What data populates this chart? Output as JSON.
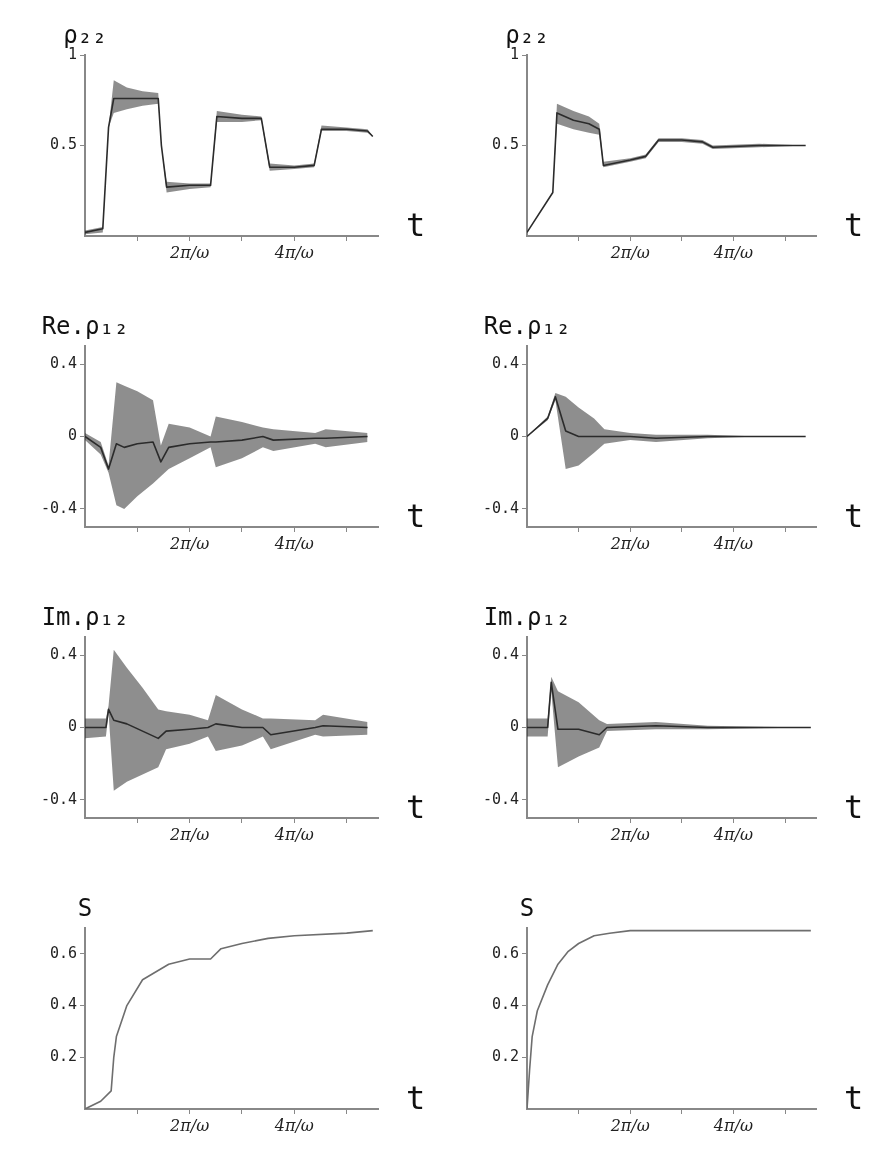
{
  "chart_data": [
    {
      "type": "line",
      "ylabel": "ρ₂₂",
      "xlabel": "t",
      "marker": "none",
      "grid": false,
      "legend": false,
      "x": [
        0,
        0.34,
        0.45,
        0.55,
        0.8,
        1.1,
        1.4,
        1.46,
        1.56,
        2.0,
        2.4,
        2.52,
        3.0,
        3.37,
        3.53,
        4.0,
        4.38,
        4.52,
        5.0,
        5.4,
        5.5
      ],
      "xlim": [
        0,
        5.6
      ],
      "xticks": [
        {
          "value": 1,
          "label": null
        },
        {
          "value": 2,
          "label": "2π/ω"
        },
        {
          "value": 3,
          "label": null
        },
        {
          "value": 4,
          "label": "4π/ω"
        },
        {
          "value": 5,
          "label": null
        }
      ],
      "ylim": [
        0,
        1
      ],
      "yticks": [
        0.5,
        1
      ],
      "series": [
        {
          "color": "#2b2b2b",
          "values": [
            0.02,
            0.04,
            0.6,
            0.76,
            0.76,
            0.76,
            0.76,
            0.5,
            0.27,
            0.28,
            0.28,
            0.66,
            0.65,
            0.65,
            0.38,
            0.38,
            0.39,
            0.59,
            0.59,
            0.58,
            0.55
          ],
          "lower": [
            0.01,
            0.02,
            0.6,
            0.68,
            0.7,
            0.72,
            0.73,
            0.5,
            0.24,
            0.26,
            0.27,
            0.63,
            0.63,
            0.64,
            0.36,
            0.37,
            0.38,
            0.58,
            0.58,
            0.57,
            0.55
          ],
          "upper": [
            0.03,
            0.05,
            0.6,
            0.86,
            0.82,
            0.8,
            0.79,
            0.5,
            0.3,
            0.29,
            0.29,
            0.69,
            0.67,
            0.66,
            0.4,
            0.39,
            0.4,
            0.61,
            0.6,
            0.59,
            0.55
          ]
        }
      ]
    },
    {
      "type": "line",
      "ylabel": "ρ₂₂",
      "xlabel": "t",
      "marker": "none",
      "grid": false,
      "legend": false,
      "x": [
        0,
        0.5,
        0.58,
        0.9,
        1.2,
        1.4,
        1.48,
        2.0,
        2.3,
        2.55,
        3.0,
        3.4,
        3.6,
        4.5,
        5.4
      ],
      "xlim": [
        0,
        5.6
      ],
      "xticks": [
        {
          "value": 1,
          "label": null
        },
        {
          "value": 2,
          "label": "2π/ω"
        },
        {
          "value": 3,
          "label": null
        },
        {
          "value": 4,
          "label": "4π/ω"
        },
        {
          "value": 5,
          "label": null
        }
      ],
      "ylim": [
        0,
        1
      ],
      "yticks": [
        0.5,
        1
      ],
      "series": [
        {
          "color": "#2b2b2b",
          "values": [
            0.02,
            0.24,
            0.68,
            0.64,
            0.62,
            0.59,
            0.39,
            0.42,
            0.44,
            0.53,
            0.53,
            0.52,
            0.49,
            0.5,
            0.5
          ],
          "lower": [
            0.02,
            0.24,
            0.62,
            0.59,
            0.57,
            0.56,
            0.38,
            0.41,
            0.43,
            0.52,
            0.52,
            0.51,
            0.48,
            0.49,
            0.5
          ],
          "upper": [
            0.02,
            0.24,
            0.73,
            0.69,
            0.66,
            0.62,
            0.41,
            0.43,
            0.45,
            0.54,
            0.54,
            0.53,
            0.5,
            0.51,
            0.5
          ]
        }
      ]
    },
    {
      "type": "line",
      "ylabel": "Re.ρ₁₂",
      "xlabel": "t",
      "marker": "none",
      "grid": false,
      "legend": false,
      "x": [
        0,
        0.3,
        0.45,
        0.6,
        0.75,
        1.0,
        1.3,
        1.45,
        1.6,
        2.0,
        2.4,
        2.5,
        3.0,
        3.4,
        3.6,
        4.4,
        4.6,
        5.4
      ],
      "xlim": [
        0,
        5.6
      ],
      "xticks": [
        {
          "value": 1,
          "label": null
        },
        {
          "value": 2,
          "label": "2π/ω"
        },
        {
          "value": 3,
          "label": null
        },
        {
          "value": 4,
          "label": "4π/ω"
        },
        {
          "value": 5,
          "label": null
        }
      ],
      "ylim": [
        -0.5,
        0.5
      ],
      "yticks": [
        -0.4,
        0,
        0.4
      ],
      "series": [
        {
          "color": "#2b2b2b",
          "values": [
            0,
            -0.06,
            -0.18,
            -0.04,
            -0.06,
            -0.04,
            -0.03,
            -0.14,
            -0.06,
            -0.04,
            -0.03,
            -0.03,
            -0.02,
            0,
            -0.02,
            -0.01,
            -0.01,
            0
          ],
          "lower": [
            -0.02,
            -0.1,
            -0.2,
            -0.38,
            -0.4,
            -0.33,
            -0.26,
            -0.22,
            -0.18,
            -0.12,
            -0.06,
            -0.17,
            -0.12,
            -0.06,
            -0.08,
            -0.04,
            -0.06,
            -0.03
          ],
          "upper": [
            0.02,
            -0.03,
            -0.16,
            0.3,
            0.28,
            0.25,
            0.2,
            -0.05,
            0.07,
            0.05,
            0,
            0.11,
            0.08,
            0.05,
            0.04,
            0.02,
            0.04,
            0.02
          ]
        }
      ]
    },
    {
      "type": "line",
      "ylabel": "Re.ρ₁₂",
      "xlabel": "t",
      "marker": "none",
      "grid": false,
      "legend": false,
      "x": [
        0,
        0.4,
        0.55,
        0.75,
        1.0,
        1.3,
        1.5,
        2.0,
        2.5,
        3.5,
        4.5,
        5.4
      ],
      "xlim": [
        0,
        5.6
      ],
      "xticks": [
        {
          "value": 1,
          "label": null
        },
        {
          "value": 2,
          "label": "2π/ω"
        },
        {
          "value": 3,
          "label": null
        },
        {
          "value": 4,
          "label": "4π/ω"
        },
        {
          "value": 5,
          "label": null
        }
      ],
      "ylim": [
        -0.5,
        0.5
      ],
      "yticks": [
        -0.4,
        0,
        0.4
      ],
      "series": [
        {
          "color": "#2b2b2b",
          "values": [
            0,
            0.1,
            0.22,
            0.03,
            0,
            0,
            0,
            0,
            -0.01,
            0,
            0,
            0
          ],
          "lower": [
            0,
            0.09,
            0.2,
            -0.18,
            -0.16,
            -0.09,
            -0.04,
            -0.02,
            -0.03,
            -0.01,
            0,
            0
          ],
          "upper": [
            0,
            0.11,
            0.24,
            0.22,
            0.16,
            0.1,
            0.04,
            0.02,
            0.01,
            0.01,
            0,
            0
          ]
        }
      ]
    },
    {
      "type": "line",
      "ylabel": "Im.ρ₁₂",
      "xlabel": "t",
      "marker": "none",
      "grid": false,
      "legend": false,
      "x": [
        0,
        0.4,
        0.45,
        0.55,
        0.8,
        1.1,
        1.4,
        1.55,
        2.0,
        2.35,
        2.5,
        3.0,
        3.4,
        3.55,
        4.4,
        4.55,
        5.4
      ],
      "xlim": [
        0,
        5.6
      ],
      "xticks": [
        {
          "value": 1,
          "label": null
        },
        {
          "value": 2,
          "label": "2π/ω"
        },
        {
          "value": 3,
          "label": null
        },
        {
          "value": 4,
          "label": "4π/ω"
        },
        {
          "value": 5,
          "label": null
        }
      ],
      "ylim": [
        -0.5,
        0.5
      ],
      "yticks": [
        -0.4,
        0,
        0.4
      ],
      "series": [
        {
          "color": "#2b2b2b",
          "values": [
            0,
            0,
            0.1,
            0.04,
            0.02,
            -0.02,
            -0.06,
            -0.02,
            -0.01,
            0,
            0.02,
            0,
            0,
            -0.04,
            0,
            0.01,
            0
          ],
          "lower": [
            -0.06,
            -0.05,
            0.08,
            -0.35,
            -0.3,
            -0.26,
            -0.22,
            -0.12,
            -0.09,
            -0.05,
            -0.13,
            -0.1,
            -0.05,
            -0.12,
            -0.04,
            -0.05,
            -0.04
          ],
          "upper": [
            0.05,
            0.05,
            0.12,
            0.43,
            0.33,
            0.22,
            0.1,
            0.09,
            0.07,
            0.04,
            0.18,
            0.1,
            0.05,
            0.05,
            0.04,
            0.07,
            0.03
          ]
        }
      ]
    },
    {
      "type": "line",
      "ylabel": "Im.ρ₁₂",
      "xlabel": "t",
      "marker": "none",
      "grid": false,
      "legend": false,
      "x": [
        0,
        0.4,
        0.47,
        0.6,
        1.0,
        1.4,
        1.55,
        2.5,
        3.5,
        5.5
      ],
      "xlim": [
        0,
        5.6
      ],
      "xticks": [
        {
          "value": 1,
          "label": null
        },
        {
          "value": 2,
          "label": "2π/ω"
        },
        {
          "value": 3,
          "label": null
        },
        {
          "value": 4,
          "label": "4π/ω"
        },
        {
          "value": 5,
          "label": null
        }
      ],
      "ylim": [
        -0.5,
        0.5
      ],
      "yticks": [
        -0.4,
        0,
        0.4
      ],
      "series": [
        {
          "color": "#2b2b2b",
          "values": [
            0,
            0,
            0.25,
            -0.01,
            -0.01,
            -0.04,
            0,
            0.01,
            0,
            0
          ],
          "lower": [
            -0.05,
            -0.05,
            0.2,
            -0.22,
            -0.16,
            -0.11,
            -0.02,
            -0.01,
            -0.01,
            0
          ],
          "upper": [
            0.05,
            0.05,
            0.28,
            0.2,
            0.14,
            0.04,
            0.02,
            0.03,
            0.01,
            0
          ]
        }
      ]
    },
    {
      "type": "line",
      "ylabel": "S",
      "xlabel": "t",
      "marker": "none",
      "grid": false,
      "legend": false,
      "x": [
        0,
        0.3,
        0.5,
        0.55,
        0.6,
        0.8,
        1.1,
        1.6,
        2.0,
        2.4,
        2.6,
        3.0,
        3.5,
        4.0,
        5.0,
        5.5
      ],
      "xlim": [
        0,
        5.6
      ],
      "xticks": [
        {
          "value": 1,
          "label": null
        },
        {
          "value": 2,
          "label": "2π/ω"
        },
        {
          "value": 3,
          "label": null
        },
        {
          "value": 4,
          "label": "4π/ω"
        },
        {
          "value": 5,
          "label": null
        }
      ],
      "ylim": [
        0,
        0.7
      ],
      "yticks": [
        0.2,
        0.4,
        0.6
      ],
      "series": [
        {
          "color": "#6e6e6e",
          "values": [
            0,
            0.03,
            0.07,
            0.2,
            0.28,
            0.4,
            0.5,
            0.56,
            0.58,
            0.58,
            0.62,
            0.64,
            0.66,
            0.67,
            0.68,
            0.69
          ]
        }
      ]
    },
    {
      "type": "line",
      "ylabel": "S",
      "xlabel": "t",
      "marker": "none",
      "grid": false,
      "legend": false,
      "x": [
        0,
        0.05,
        0.1,
        0.2,
        0.4,
        0.6,
        0.8,
        1.0,
        1.3,
        1.6,
        2.0,
        5.5
      ],
      "xlim": [
        0,
        5.6
      ],
      "xticks": [
        {
          "value": 1,
          "label": null
        },
        {
          "value": 2,
          "label": "2π/ω"
        },
        {
          "value": 3,
          "label": null
        },
        {
          "value": 4,
          "label": "4π/ω"
        },
        {
          "value": 5,
          "label": null
        }
      ],
      "ylim": [
        0,
        0.7
      ],
      "yticks": [
        0.2,
        0.4,
        0.6
      ],
      "series": [
        {
          "color": "#6e6e6e",
          "values": [
            0,
            0.15,
            0.28,
            0.38,
            0.48,
            0.56,
            0.61,
            0.64,
            0.67,
            0.68,
            0.69,
            0.69
          ]
        }
      ]
    }
  ]
}
